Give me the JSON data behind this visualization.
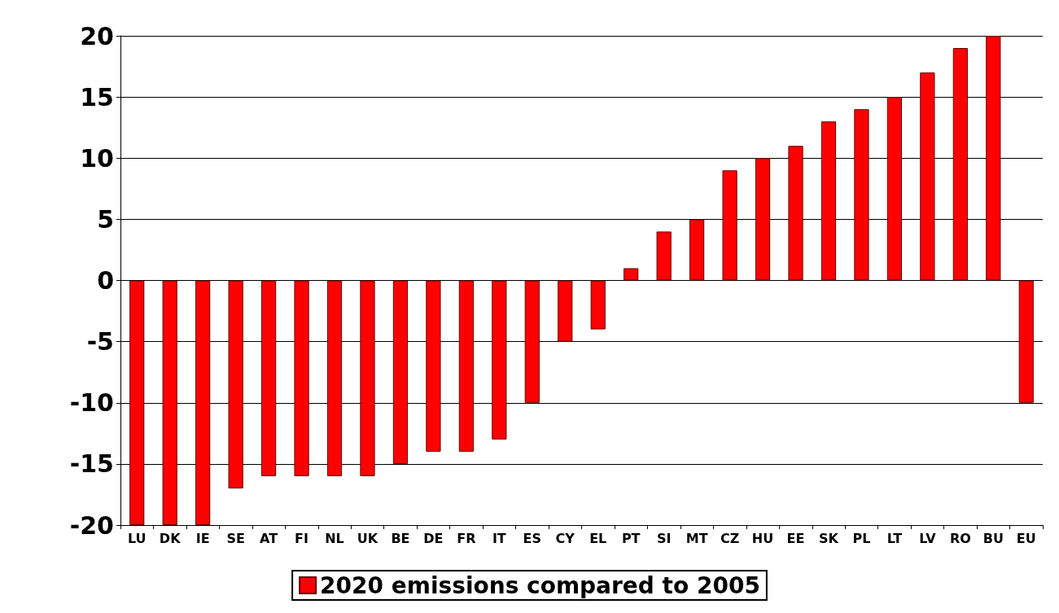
{
  "chart_data": {
    "type": "bar",
    "categories": [
      "LU",
      "DK",
      "IE",
      "SE",
      "AT",
      "FI",
      "NL",
      "UK",
      "BE",
      "DE",
      "FR",
      "IT",
      "ES",
      "CY",
      "EL",
      "PT",
      "SI",
      "MT",
      "CZ",
      "HU",
      "EE",
      "SK",
      "PL",
      "LT",
      "LV",
      "RO",
      "BU",
      "EU"
    ],
    "series": [
      {
        "name": "2020 emissions compared to 2005",
        "color": "#ff0000",
        "values": [
          -20,
          -20,
          -20,
          -17,
          -16,
          -16,
          -16,
          -16,
          -15,
          -14,
          -14,
          -13,
          -10,
          -5,
          -4,
          1,
          4,
          5,
          9,
          10,
          11,
          13,
          14,
          15,
          17,
          19,
          20,
          -10
        ]
      }
    ],
    "ylim": [
      -20,
      20
    ],
    "yticks": [
      -20,
      -15,
      -10,
      -5,
      0,
      5,
      10,
      15,
      20
    ],
    "grid": "y",
    "legend": "bottom"
  }
}
